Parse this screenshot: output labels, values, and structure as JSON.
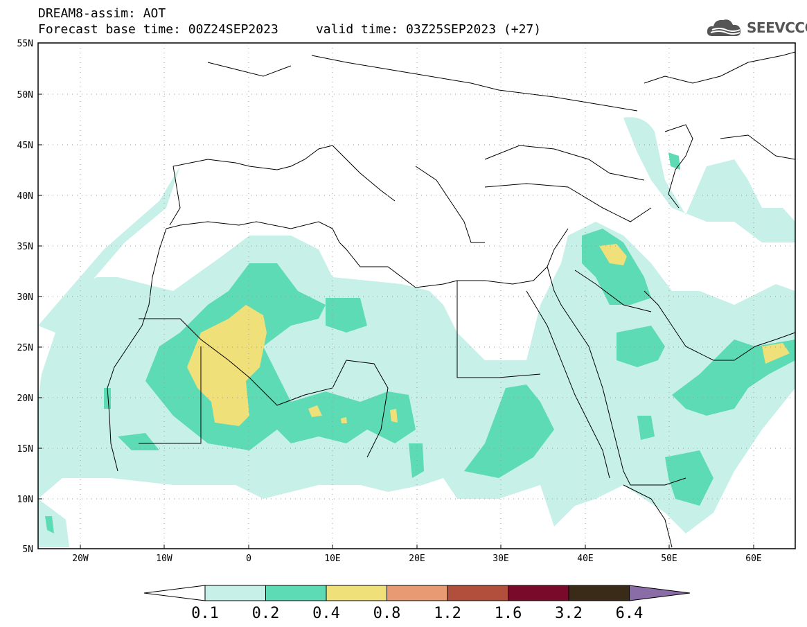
{
  "header": {
    "title_line1": "DREAM8-assim: AOT",
    "title_line2": "Forecast base time: 00Z24SEP2023     valid time: 03Z25SEP2023 (+27)",
    "logo_text": "SEEVCCC"
  },
  "map": {
    "lon_range": [
      -25,
      65
    ],
    "lat_range": [
      5,
      55
    ],
    "lat_labels": [
      "55N",
      "50N",
      "45N",
      "40N",
      "35N",
      "30N",
      "25N",
      "20N",
      "15N",
      "10N",
      "5N"
    ],
    "lon_labels": [
      "20W",
      "10W",
      "0",
      "10E",
      "20E",
      "30E",
      "40E",
      "50E",
      "60E"
    ],
    "legend": {
      "labels": [
        "0.1",
        "0.2",
        "0.4",
        "0.8",
        "1.2",
        "1.6",
        "3.2",
        "6.4"
      ],
      "colors": [
        "#ffffff",
        "#c6f0e8",
        "#5ddbb4",
        "#f0e07a",
        "#e89a72",
        "#b24e3c",
        "#7a0a2a",
        "#3a2a18",
        "#8a6ca6"
      ]
    }
  }
}
